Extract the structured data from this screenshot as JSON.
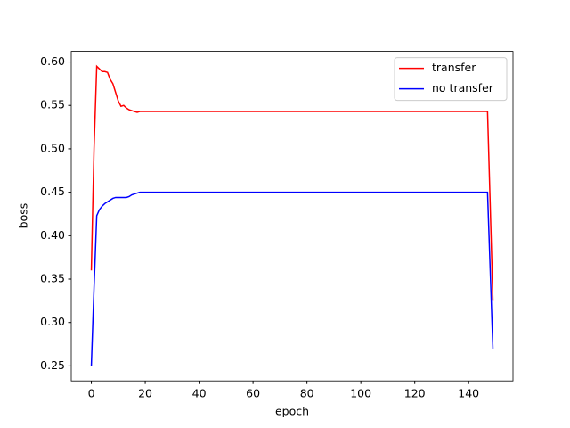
{
  "chart_data": {
    "type": "line",
    "xlabel": "epoch",
    "ylabel": "boss",
    "x": [
      0,
      1,
      2,
      3,
      4,
      5,
      6,
      7,
      8,
      9,
      10,
      11,
      12,
      13,
      14,
      15,
      16,
      17,
      18,
      19,
      147,
      148,
      149
    ],
    "series": [
      {
        "name": "transfer",
        "color": "#ff0000",
        "values": [
          0.36,
          0.5,
          0.595,
          0.592,
          0.589,
          0.589,
          0.588,
          0.58,
          0.575,
          0.565,
          0.555,
          0.549,
          0.55,
          0.547,
          0.545,
          0.544,
          0.543,
          0.542,
          0.543,
          0.543,
          0.543,
          0.435,
          0.325
        ]
      },
      {
        "name": "no transfer",
        "color": "#0000ff",
        "values": [
          0.25,
          0.34,
          0.423,
          0.43,
          0.434,
          0.437,
          0.439,
          0.441,
          0.443,
          0.444,
          0.444,
          0.444,
          0.444,
          0.444,
          0.445,
          0.447,
          0.448,
          0.449,
          0.45,
          0.45,
          0.45,
          0.36,
          0.27
        ]
      }
    ],
    "xlim": [
      -7.45,
      156.45
    ],
    "ylim": [
      0.23275,
      0.61225
    ],
    "xticks": [
      0,
      20,
      40,
      60,
      80,
      100,
      120,
      140
    ],
    "yticks": [
      0.25,
      {
        "value": 0.3,
        "label": "0.30"
      },
      0.35,
      {
        "value": 0.4,
        "label": "0.40"
      },
      0.45,
      {
        "value": 0.5,
        "label": "0.50"
      },
      0.55,
      {
        "value": 0.6,
        "label": "0.60"
      }
    ],
    "grid": false,
    "legend": "upper right"
  }
}
